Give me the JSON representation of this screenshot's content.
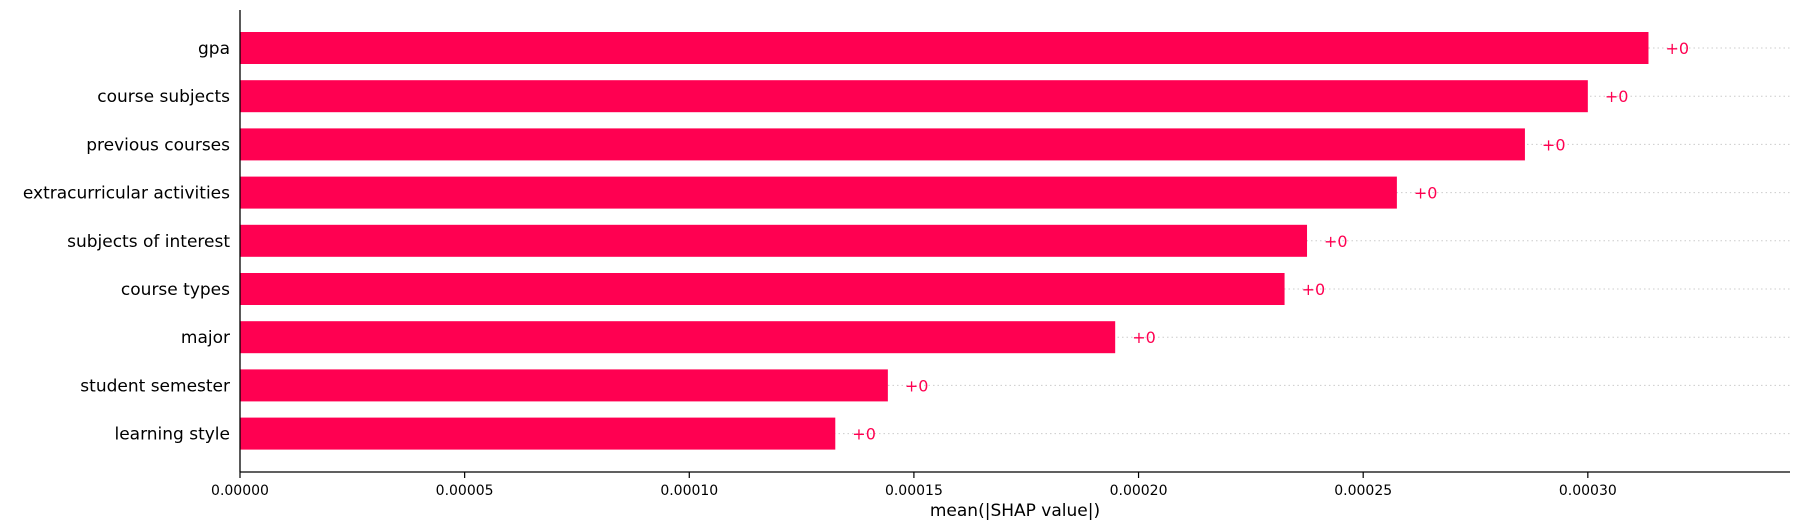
{
  "chart_data": {
    "type": "bar",
    "orientation": "horizontal",
    "categories": [
      "gpa",
      "course subjects",
      "previous courses",
      "extracurricular activities",
      "subjects of interest",
      "course types",
      "major",
      "student semester",
      "learning style"
    ],
    "values": [
      0.0003135,
      0.0003,
      0.000286,
      0.0002575,
      0.0002375,
      0.0002325,
      0.0001948,
      0.0001442,
      0.0001325
    ],
    "data_labels": [
      "+0",
      "+0",
      "+0",
      "+0",
      "+0",
      "+0",
      "+0",
      "+0",
      "+0"
    ],
    "xlabel": "mean(|SHAP value|)",
    "ylabel": "",
    "xlim": [
      0,
      0.000345
    ],
    "xticks": [
      0,
      5e-05,
      0.0001,
      0.00015,
      0.0002,
      0.00025,
      0.0003
    ],
    "xtick_labels": [
      "0.00000",
      "0.00005",
      "0.00010",
      "0.00015",
      "0.00020",
      "0.00025",
      "0.00030"
    ],
    "grid": "dotted horizontal guide lines per bar",
    "colors": {
      "bar": "#ff0051",
      "label": "#ff0051",
      "guide": "#cccccc",
      "axis": "#000000"
    }
  }
}
